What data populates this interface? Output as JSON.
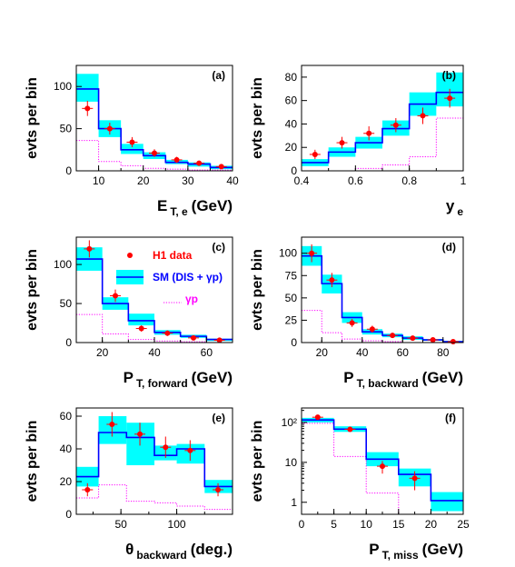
{
  "colors": {
    "band": "#00ffff",
    "sm": "#0000ff",
    "gp": "#ff00ff",
    "data": "#ff0000",
    "axis": "#000000"
  },
  "chart_data": [
    {
      "id": "a",
      "type": "histogram",
      "panel_label": "(a)",
      "ylabel": "evts per bin",
      "xlabel": "E",
      "xlabel_sub": "T, e",
      "xlabel_unit": "(GeV)",
      "xlim": [
        5,
        40
      ],
      "ylim": [
        0,
        125
      ],
      "xticks": [
        10,
        20,
        30,
        40
      ],
      "yticks": [
        0,
        50,
        100
      ],
      "bins": [
        5,
        10,
        15,
        20,
        25,
        30,
        35,
        40
      ],
      "sm": [
        97,
        50,
        25,
        18,
        10,
        8,
        4
      ],
      "band_lo": [
        82,
        40,
        20,
        14,
        8,
        5,
        2
      ],
      "band_hi": [
        115,
        60,
        32,
        22,
        13,
        10,
        6
      ],
      "gp": [
        36,
        11,
        6,
        3,
        2,
        1,
        1
      ],
      "data": {
        "x": [
          7.5,
          12.5,
          17.5,
          22.5,
          27.5,
          32.5,
          37.5
        ],
        "y": [
          74,
          50,
          34,
          21,
          13,
          9,
          5
        ],
        "err": [
          9,
          7,
          6,
          4.6,
          3.6,
          3,
          2.2
        ]
      }
    },
    {
      "id": "b",
      "type": "histogram",
      "panel_label": "(b)",
      "ylabel": "evts per bin",
      "xlabel": "y",
      "xlabel_sub": "e",
      "xlabel_unit": "",
      "xlim": [
        0.4,
        1.0
      ],
      "ylim": [
        0,
        90
      ],
      "xticks": [
        0.4,
        0.6,
        0.8,
        1
      ],
      "yticks": [
        0,
        20,
        40,
        60,
        80
      ],
      "bins": [
        0.4,
        0.5,
        0.6,
        0.7,
        0.8,
        0.9,
        1.0
      ],
      "sm": [
        7,
        16,
        24,
        36,
        57,
        67
      ],
      "band_lo": [
        4,
        12,
        19,
        30,
        47,
        55
      ],
      "band_hi": [
        10,
        20,
        29,
        43,
        67,
        84
      ],
      "gp": [
        0,
        0,
        2,
        5,
        12,
        45
      ],
      "data": {
        "x": [
          0.45,
          0.55,
          0.65,
          0.75,
          0.85,
          0.95
        ],
        "y": [
          14,
          24,
          32,
          39,
          47,
          62
        ],
        "err": [
          4,
          5,
          6,
          6,
          7,
          8
        ]
      }
    },
    {
      "id": "c",
      "type": "histogram",
      "panel_label": "(c)",
      "ylabel": "evts per bin",
      "xlabel": "P",
      "xlabel_sub": "T, forward",
      "xlabel_unit": "(GeV)",
      "xlim": [
        10,
        70
      ],
      "ylim": [
        0,
        135
      ],
      "xticks": [
        20,
        40,
        60
      ],
      "yticks": [
        0,
        50,
        100
      ],
      "bins": [
        10,
        20,
        30,
        40,
        50,
        60,
        70
      ],
      "sm": [
        107,
        50,
        28,
        13,
        8,
        4
      ],
      "band_lo": [
        92,
        42,
        22,
        10,
        6,
        2
      ],
      "band_hi": [
        122,
        58,
        37,
        16,
        10,
        5
      ],
      "gp": [
        36,
        11,
        4,
        2,
        1,
        0
      ],
      "data": {
        "x": [
          15,
          25,
          35,
          45,
          55,
          65
        ],
        "y": [
          120,
          60,
          18,
          12,
          6,
          3
        ],
        "err": [
          11,
          8,
          4,
          3.5,
          2.5,
          1.7
        ]
      },
      "legend": {
        "position": "top-right",
        "entries": [
          {
            "label": "H1 data",
            "color": "#ff0000",
            "kind": "point"
          },
          {
            "label": "SM (DIS + γp)",
            "color": "#0000ff",
            "kind": "line"
          },
          {
            "label": "γp",
            "color": "#ff00ff",
            "kind": "dotted"
          }
        ]
      }
    },
    {
      "id": "d",
      "type": "histogram",
      "panel_label": "(d)",
      "ylabel": "evts per bin",
      "xlabel": "P",
      "xlabel_sub": "T, backward",
      "xlabel_unit": "(GeV)",
      "xlim": [
        10,
        90
      ],
      "ylim": [
        0,
        118
      ],
      "xticks": [
        20,
        40,
        60,
        80
      ],
      "yticks": [
        0,
        25,
        50,
        75,
        100
      ],
      "bins": [
        10,
        20,
        30,
        40,
        50,
        60,
        70,
        80,
        90
      ],
      "sm": [
        97,
        66,
        28,
        12,
        8,
        5,
        3,
        1
      ],
      "band_lo": [
        86,
        55,
        22,
        9,
        6,
        3,
        2,
        0
      ],
      "band_hi": [
        108,
        76,
        34,
        15,
        10,
        7,
        4,
        2
      ],
      "gp": [
        36,
        11,
        4,
        2,
        1,
        0,
        0,
        0
      ],
      "data": {
        "x": [
          15,
          25,
          35,
          45,
          55,
          65,
          75,
          85
        ],
        "y": [
          100,
          70,
          22,
          15,
          8,
          5,
          3,
          1
        ],
        "err": [
          10,
          8,
          4.5,
          3.9,
          2.8,
          2.2,
          1.7,
          1
        ]
      }
    },
    {
      "id": "e",
      "type": "histogram",
      "panel_label": "(e)",
      "ylabel": "evts per bin",
      "xlabel": "θ",
      "xlabel_sub": "backward",
      "xlabel_unit": "(deg.)",
      "xlim": [
        10,
        150
      ],
      "ylim": [
        0,
        65
      ],
      "xticks": [
        50,
        100
      ],
      "yticks": [
        0,
        20,
        40,
        60
      ],
      "bins": [
        10,
        30,
        55,
        80,
        100,
        125,
        150
      ],
      "sm": [
        23,
        50,
        47,
        36,
        40,
        17
      ],
      "band_lo": [
        17,
        43,
        30,
        33,
        31,
        13
      ],
      "band_hi": [
        29,
        60,
        56,
        42,
        43,
        21
      ],
      "gp": [
        10,
        18,
        8,
        7,
        5,
        3
      ],
      "data": {
        "x": [
          20,
          42,
          67,
          90,
          112,
          137
        ],
        "y": [
          15,
          55,
          49,
          41,
          39,
          15
        ],
        "err": [
          4,
          7.5,
          7,
          6.5,
          6.3,
          4
        ]
      }
    },
    {
      "id": "f",
      "type": "histogram",
      "panel_label": "(f)",
      "ylabel": "evts per bin",
      "xlabel": "P",
      "xlabel_sub": "T, miss",
      "xlabel_unit": "(GeV)",
      "xlim": [
        0,
        25
      ],
      "ylim": [
        0.5,
        230
      ],
      "log_y": true,
      "xticks": [
        0,
        5,
        10,
        15,
        20,
        25
      ],
      "yticks": [
        1,
        10,
        100
      ],
      "ytick_labels": [
        "1",
        "10",
        "10²"
      ],
      "bins": [
        0,
        5,
        10,
        15,
        20,
        25
      ],
      "sm": [
        115,
        68,
        12,
        5,
        1.1
      ],
      "band_lo": [
        100,
        58,
        8,
        2.5,
        0.6
      ],
      "band_hi": [
        130,
        80,
        18,
        7,
        1.8
      ],
      "gp": [
        95,
        14,
        1.7,
        0.5,
        0.5
      ],
      "data": {
        "x": [
          2.5,
          7.5,
          12.5,
          17.5,
          22.5
        ],
        "y": [
          135,
          67,
          8,
          4,
          0
        ],
        "err": [
          12,
          8,
          2.8,
          2,
          0
        ]
      }
    }
  ]
}
